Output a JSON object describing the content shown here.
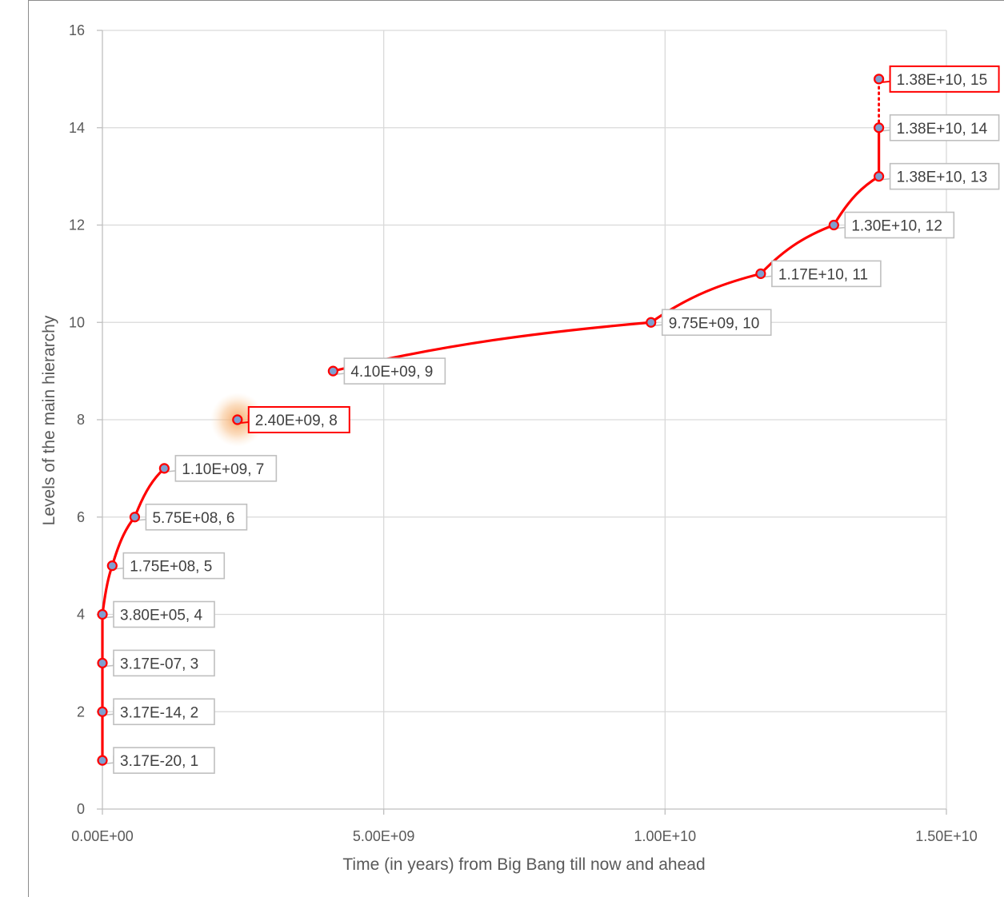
{
  "chart_data": {
    "type": "scatter",
    "title": "",
    "xlabel": "Time (in years) from Big Bang till now and ahead",
    "ylabel": "Levels of the main hierarchy",
    "xlim": [
      0,
      15000000000
    ],
    "ylim": [
      0,
      16
    ],
    "x_ticks": [
      0,
      5000000000,
      10000000000,
      15000000000
    ],
    "x_tick_labels": [
      "0.00E+00",
      "5.00E+09",
      "1.00E+10",
      "1.50E+10"
    ],
    "y_ticks": [
      0,
      2,
      4,
      6,
      8,
      10,
      12,
      14,
      16
    ],
    "y_tick_labels": [
      "0",
      "2",
      "4",
      "6",
      "8",
      "10",
      "12",
      "14",
      "16"
    ],
    "grid": true,
    "line_color": "#ff0000",
    "marker_fill": "#7f9fd0",
    "highlight_color": "#ff0000",
    "points": [
      {
        "x": 3.17e-20,
        "y": 1,
        "label": "3.17E-20, 1"
      },
      {
        "x": 3.17e-14,
        "y": 2,
        "label": "3.17E-14, 2"
      },
      {
        "x": 3.17e-07,
        "y": 3,
        "label": "3.17E-07, 3"
      },
      {
        "x": 380000,
        "y": 4,
        "label": "3.80E+05, 4"
      },
      {
        "x": 175000000,
        "y": 5,
        "label": "1.75E+08, 5"
      },
      {
        "x": 575000000,
        "y": 6,
        "label": "5.75E+08, 6"
      },
      {
        "x": 1100000000,
        "y": 7,
        "label": "1.10E+09, 7"
      },
      {
        "x": 2400000000,
        "y": 8,
        "label": "2.40E+09, 8",
        "highlight": true
      },
      {
        "x": 4100000000,
        "y": 9,
        "label": "4.10E+09, 9"
      },
      {
        "x": 9750000000,
        "y": 10,
        "label": "9.75E+09, 10"
      },
      {
        "x": 11700000000,
        "y": 11,
        "label": "1.17E+10, 11"
      },
      {
        "x": 13000000000,
        "y": 12,
        "label": "1.30E+10, 12"
      },
      {
        "x": 13800000000,
        "y": 13,
        "label": "1.38E+10, 13"
      },
      {
        "x": 13800000000,
        "y": 14,
        "label": "1.38E+10, 14"
      },
      {
        "x": 13800000000,
        "y": 15,
        "label": "1.38E+10, 15",
        "highlight": true
      }
    ],
    "segments": [
      {
        "from": 1,
        "to": 2,
        "style": "solid"
      },
      {
        "from": 2,
        "to": 3,
        "style": "solid"
      },
      {
        "from": 3,
        "to": 4,
        "style": "solid"
      },
      {
        "from": 4,
        "to": 5,
        "style": "solid"
      },
      {
        "from": 5,
        "to": 6,
        "style": "solid"
      },
      {
        "from": 6,
        "to": 7,
        "style": "solid"
      },
      {
        "from": 9,
        "to": 10,
        "style": "solid"
      },
      {
        "from": 10,
        "to": 11,
        "style": "solid"
      },
      {
        "from": 11,
        "to": 12,
        "style": "solid"
      },
      {
        "from": 12,
        "to": 13,
        "style": "solid"
      },
      {
        "from": 13,
        "to": 14,
        "style": "solid"
      },
      {
        "from": 14,
        "to": 15,
        "style": "dotted"
      }
    ]
  }
}
